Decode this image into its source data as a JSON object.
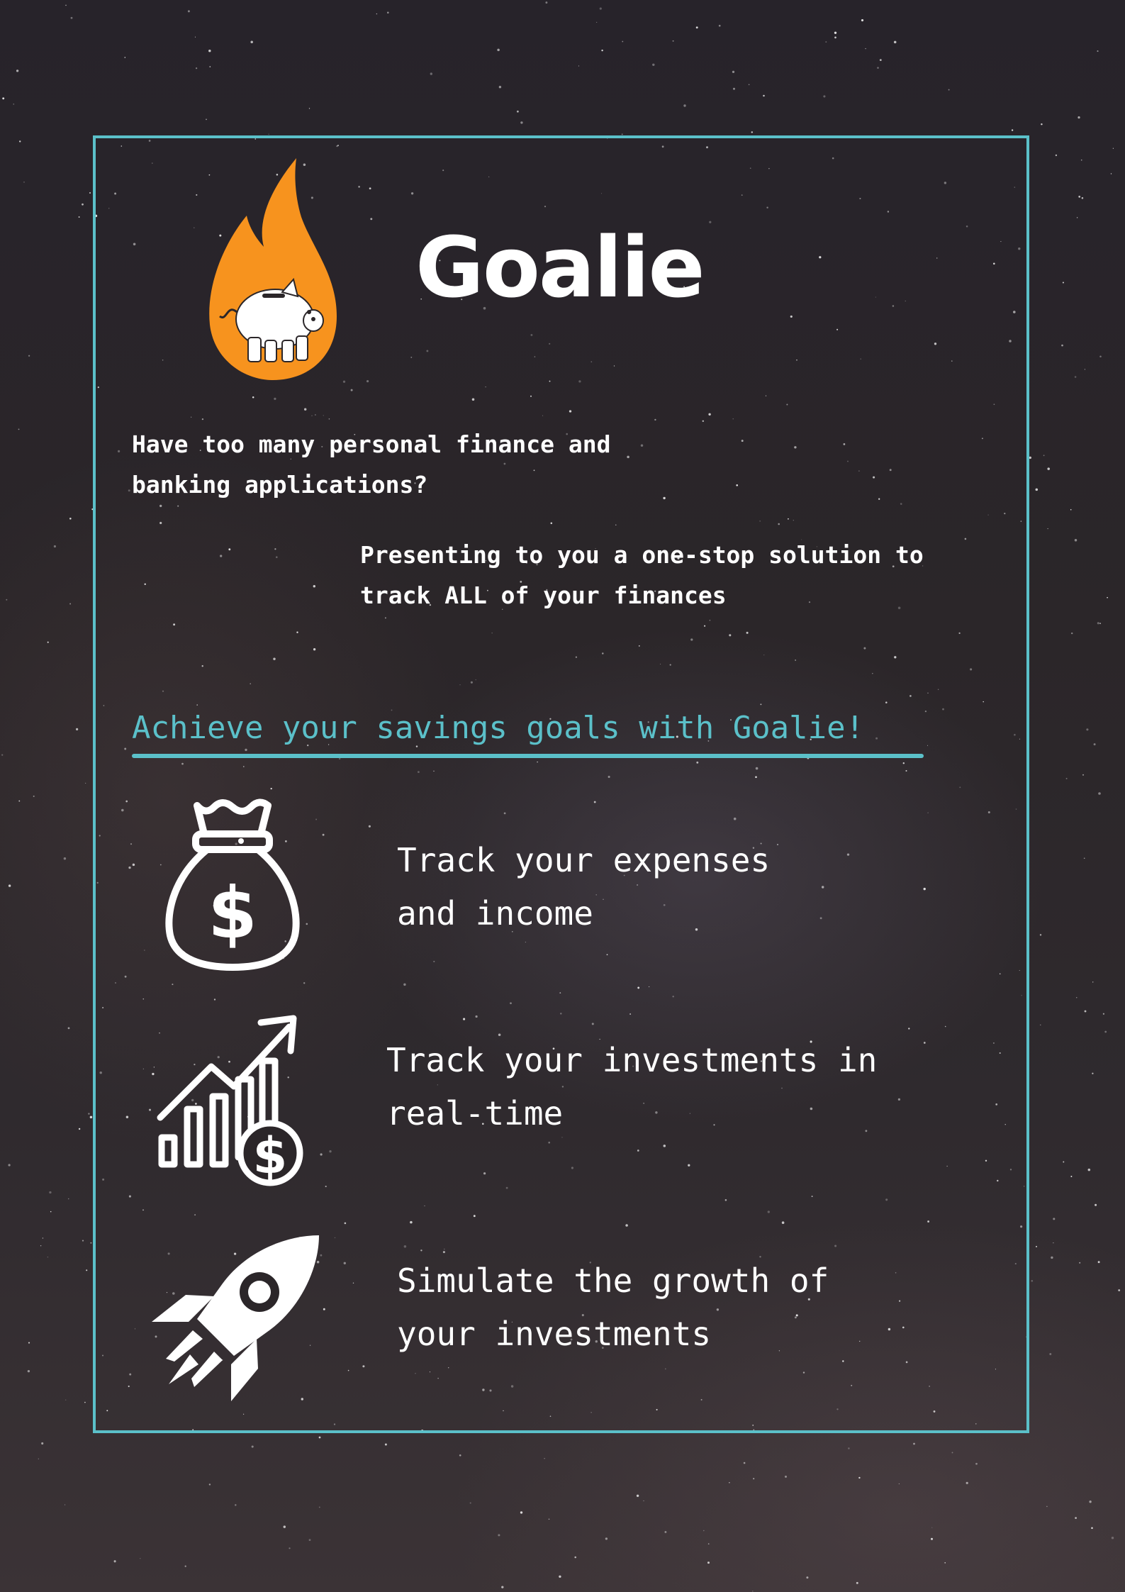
{
  "brand": {
    "name": "Goalie",
    "logo_icon": "flame-piggy-bank-icon",
    "colors": {
      "accent": "#5bc0c9",
      "flame": "#f7931e",
      "text": "#ffffff",
      "background": "#2b2629"
    }
  },
  "intro": {
    "question_lines": [
      "Have too many personal finance and",
      "banking applications?"
    ],
    "pitch_lines": [
      "Presenting to you a one-stop solution to",
      "track ALL of your finances"
    ]
  },
  "tagline": "Achieve your savings goals with Goalie!",
  "features": [
    {
      "icon": "money-bag-icon",
      "lines": [
        "Track your expenses",
        "and income"
      ]
    },
    {
      "icon": "investment-growth-chart-icon",
      "lines": [
        "Track your investments in",
        "real-time"
      ]
    },
    {
      "icon": "rocket-icon",
      "lines": [
        "Simulate the growth of",
        "your investments"
      ]
    }
  ]
}
